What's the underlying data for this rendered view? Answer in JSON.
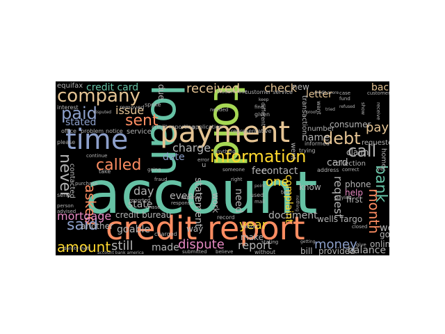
{
  "wordcloud": {
    "background": "#000000",
    "palette": [
      "#66c2a5",
      "#fc8d62",
      "#8da0cb",
      "#e78ac3",
      "#a6d854",
      "#ffd92f",
      "#e5c494",
      "#b3b3b3"
    ],
    "words": [
      {
        "text": "account",
        "color": "#66c2a5"
      },
      {
        "text": "credit report",
        "color": "#fc8d62"
      },
      {
        "text": "loan",
        "color": "#66c2a5"
      },
      {
        "text": "told",
        "color": "#a6d854"
      },
      {
        "text": "payment",
        "color": "#e5c494"
      },
      {
        "text": "time",
        "color": "#8da0cb"
      },
      {
        "text": "company",
        "color": "#e5c494"
      },
      {
        "text": "information",
        "color": "#ffd92f"
      },
      {
        "text": "debt",
        "color": "#e5c494"
      },
      {
        "text": "called",
        "color": "#fc8d62"
      },
      {
        "text": "sent",
        "color": "#fc8d62"
      },
      {
        "text": "paid",
        "color": "#8da0cb"
      },
      {
        "text": "call",
        "color": "#b3b3b3"
      },
      {
        "text": "pay",
        "color": "#e5c494"
      },
      {
        "text": "bank",
        "color": "#66c2a5"
      },
      {
        "text": "month",
        "color": "#fc8d62"
      },
      {
        "text": "never",
        "color": "#b3b3b3"
      },
      {
        "text": "asked",
        "color": "#fc8d62"
      },
      {
        "text": "said",
        "color": "#8da0cb"
      },
      {
        "text": "amount",
        "color": "#ffd92f"
      },
      {
        "text": "dispute",
        "color": "#e78ac3"
      },
      {
        "text": "received",
        "color": "#e5c494"
      },
      {
        "text": "check",
        "color": "#e5c494"
      },
      {
        "text": "one",
        "color": "#ffd92f"
      },
      {
        "text": "year",
        "color": "#ffd92f"
      },
      {
        "text": "money",
        "color": "#8da0cb"
      },
      {
        "text": "request",
        "color": "#b3b3b3"
      },
      {
        "text": "report",
        "color": "#b3b3b3"
      },
      {
        "text": "still",
        "color": "#b3b3b3"
      },
      {
        "text": "credit card",
        "color": "#66c2a5"
      },
      {
        "text": "mortgage",
        "color": "#e78ac3"
      },
      {
        "text": "charge",
        "color": "#b3b3b3"
      },
      {
        "text": "date",
        "color": "#8da0cb"
      },
      {
        "text": "day",
        "color": "#b3b3b3"
      },
      {
        "text": "contact",
        "color": "#b3b3b3"
      },
      {
        "text": "document",
        "color": "#b3b3b3"
      },
      {
        "text": "balance",
        "color": "#b3b3b3"
      },
      {
        "text": "issue",
        "color": "#e5c494"
      },
      {
        "text": "stated",
        "color": "#8da0cb"
      },
      {
        "text": "letter",
        "color": "#e5c494"
      },
      {
        "text": "back",
        "color": "#e5c494"
      },
      {
        "text": "card",
        "color": "#b3b3b3"
      },
      {
        "text": "need",
        "color": "#b3b3b3"
      },
      {
        "text": "even",
        "color": "#b3b3b3"
      },
      {
        "text": "fee",
        "color": "#b3b3b3"
      },
      {
        "text": "made",
        "color": "#b3b3b3"
      },
      {
        "text": "state",
        "color": "#b3b3b3"
      },
      {
        "text": "complaint",
        "color": "#ffd92f"
      },
      {
        "text": "statement",
        "color": "#b3b3b3"
      },
      {
        "text": "credit bureau",
        "color": "#b3b3b3"
      },
      {
        "text": "wells fargo",
        "color": "#b3b3b3"
      },
      {
        "text": "phone",
        "color": "#b3b3b3"
      },
      {
        "text": "first",
        "color": "#b3b3b3"
      },
      {
        "text": "help",
        "color": "#e78ac3"
      },
      {
        "text": "well",
        "color": "#b3b3b3"
      },
      {
        "text": "online",
        "color": "#b3b3b3"
      },
      {
        "text": "provided",
        "color": "#b3b3b3"
      },
      {
        "text": "got",
        "color": "#b3b3b3"
      },
      {
        "text": "name",
        "color": "#b3b3b3"
      },
      {
        "text": "know",
        "color": "#b3b3b3"
      },
      {
        "text": "consumer",
        "color": "#b3b3b3"
      },
      {
        "text": "claim",
        "color": "#b3b3b3"
      },
      {
        "text": "new",
        "color": "#b3b3b3"
      },
      {
        "text": "due",
        "color": "#b3b3b3"
      },
      {
        "text": "equifax",
        "color": "#b3b3b3"
      },
      {
        "text": "another",
        "color": "#b3b3b3"
      },
      {
        "text": "able",
        "color": "#b3b3b3"
      },
      {
        "text": "go",
        "color": "#b3b3b3"
      },
      {
        "text": "way",
        "color": "#b3b3b3"
      },
      {
        "text": "bill",
        "color": "#b3b3b3"
      },
      {
        "text": "make",
        "color": "#b3b3b3"
      },
      {
        "text": "collection",
        "color": "#b3b3b3"
      },
      {
        "text": "requested",
        "color": "#b3b3b3"
      },
      {
        "text": "contacted",
        "color": "#b3b3b3"
      },
      {
        "text": "service",
        "color": "#b3b3b3"
      },
      {
        "text": "number",
        "color": "#b3b3b3"
      },
      {
        "text": "transaction",
        "color": "#b3b3b3"
      },
      {
        "text": "work",
        "color": "#b3b3b3"
      },
      {
        "text": "went",
        "color": "#b3b3b3"
      },
      {
        "text": "home",
        "color": "#b3b3b3"
      },
      {
        "text": "u",
        "color": "#b3b3b3"
      },
      {
        "text": "interest",
        "color": "#b3b3b3"
      },
      {
        "text": "please",
        "color": "#b3b3b3"
      },
      {
        "text": "office",
        "color": "#b3b3b3"
      },
      {
        "text": "spoke",
        "color": "#b3b3b3"
      },
      {
        "text": "removed",
        "color": "#b3b3b3"
      },
      {
        "text": "notice",
        "color": "#b3b3b3"
      },
      {
        "text": "credit reporting",
        "color": "#b3b3b3"
      },
      {
        "text": "application",
        "color": "#b3b3b3"
      },
      {
        "text": "representative",
        "color": "#b3b3b3"
      },
      {
        "text": "customer service",
        "color": "#b3b3b3"
      },
      {
        "text": "student loan",
        "color": "#b3b3b3"
      },
      {
        "text": "problem",
        "color": "#b3b3b3"
      },
      {
        "text": "paying",
        "color": "#b3b3b3"
      },
      {
        "text": "closed",
        "color": "#b3b3b3"
      },
      {
        "text": "customer",
        "color": "#b3b3b3"
      },
      {
        "text": "show",
        "color": "#b3b3b3"
      },
      {
        "text": "receive",
        "color": "#b3b3b3"
      },
      {
        "text": "trying",
        "color": "#b3b3b3"
      },
      {
        "text": "informed",
        "color": "#b3b3b3"
      },
      {
        "text": "different",
        "color": "#b3b3b3"
      },
      {
        "text": "given",
        "color": "#b3b3b3"
      },
      {
        "text": "find",
        "color": "#b3b3b3"
      },
      {
        "text": "needed",
        "color": "#b3b3b3"
      },
      {
        "text": "charged",
        "color": "#b3b3b3"
      },
      {
        "text": "response",
        "color": "#b3b3b3"
      },
      {
        "text": "record",
        "color": "#b3b3b3"
      },
      {
        "text": "mail",
        "color": "#b3b3b3"
      },
      {
        "text": "used",
        "color": "#b3b3b3"
      },
      {
        "text": "reason",
        "color": "#b3b3b3"
      },
      {
        "text": "without",
        "color": "#b3b3b3"
      },
      {
        "text": "believe",
        "color": "#b3b3b3"
      },
      {
        "text": "submitted",
        "color": "#b3b3b3"
      },
      {
        "text": "stating",
        "color": "#b3b3b3"
      },
      {
        "text": "give",
        "color": "#b3b3b3"
      },
      {
        "text": "purchase",
        "color": "#b3b3b3"
      },
      {
        "text": "send",
        "color": "#b3b3b3"
      },
      {
        "text": "person",
        "color": "#b3b3b3"
      },
      {
        "text": "advised",
        "color": "#b3b3b3"
      },
      {
        "text": "take",
        "color": "#b3b3b3"
      },
      {
        "text": "continue",
        "color": "#b3b3b3"
      },
      {
        "text": "fraud",
        "color": "#b3b3b3"
      },
      {
        "text": "right",
        "color": "#b3b3b3"
      },
      {
        "text": "chase",
        "color": "#b3b3b3"
      },
      {
        "text": "experian",
        "color": "#b3b3b3"
      },
      {
        "text": "reported",
        "color": "#b3b3b3"
      },
      {
        "text": "address",
        "color": "#b3b3b3"
      },
      {
        "text": "correct",
        "color": "#b3b3b3"
      },
      {
        "text": "someone",
        "color": "#b3b3b3"
      },
      {
        "text": "anything",
        "color": "#b3b3b3"
      },
      {
        "text": "identity theft",
        "color": "#b3b3b3"
      },
      {
        "text": "account bank america",
        "color": "#b3b3b3"
      },
      {
        "text": "disputed",
        "color": "#b3b3b3"
      },
      {
        "text": "credit score",
        "color": "#b3b3b3"
      },
      {
        "text": "refused",
        "color": "#b3b3b3"
      },
      {
        "text": "tried",
        "color": "#b3b3b3"
      },
      {
        "text": "fund",
        "color": "#b3b3b3"
      },
      {
        "text": "case",
        "color": "#b3b3b3"
      },
      {
        "text": "keep",
        "color": "#b3b3b3"
      },
      {
        "text": "going",
        "color": "#b3b3b3"
      },
      {
        "text": "want",
        "color": "#b3b3b3"
      },
      {
        "text": "proof",
        "color": "#b3b3b3"
      },
      {
        "text": "yet",
        "color": "#b3b3b3"
      },
      {
        "text": "error",
        "color": "#b3b3b3"
      },
      {
        "text": "nothing",
        "color": "#b3b3b3"
      },
      {
        "text": "point",
        "color": "#b3b3b3"
      },
      {
        "text": "tell",
        "color": "#b3b3b3"
      },
      {
        "text": "getting",
        "color": "#b3b3b3"
      }
    ]
  }
}
